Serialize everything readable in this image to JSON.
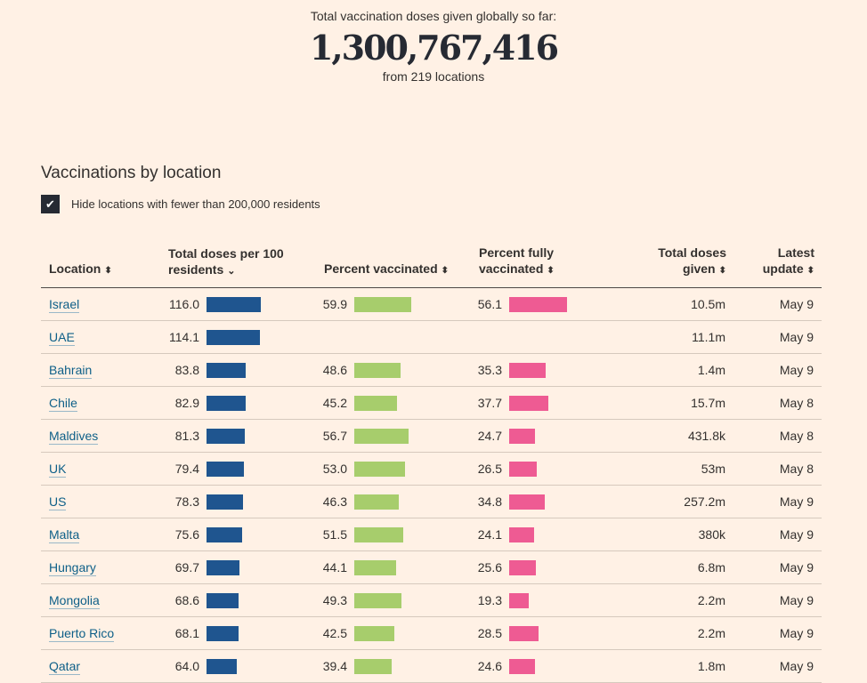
{
  "header": {
    "label": "Total vaccination doses given globally so far:",
    "total": "1,300,767,416",
    "from": "from 219 locations"
  },
  "section_title": "Vaccinations by location",
  "filter": {
    "checked": true,
    "label": "Hide locations with fewer than 200,000 residents"
  },
  "columns": {
    "location": "Location",
    "doses_per_100_line1": "Total doses per 100",
    "doses_per_100_line2": "residents",
    "pct_vaccinated": "Percent vaccinated",
    "pct_fully_line1": "Percent fully",
    "pct_fully_line2": "vaccinated",
    "total_doses_line1": "Total doses",
    "total_doses_line2": "given",
    "latest_line1": "Latest",
    "latest_line2": "update"
  },
  "colors": {
    "doses_bar": "#1f558f",
    "vaccinated_bar": "#a7cd6c",
    "fully_bar": "#ee5b93"
  },
  "rows": [
    {
      "location": "Israel",
      "doses_per_100": "116.0",
      "pct_vaccinated": "59.9",
      "pct_fully": "56.1",
      "total_doses": "10.5m",
      "latest": "May 9"
    },
    {
      "location": "UAE",
      "doses_per_100": "114.1",
      "pct_vaccinated": "",
      "pct_fully": "",
      "total_doses": "11.1m",
      "latest": "May 9"
    },
    {
      "location": "Bahrain",
      "doses_per_100": "83.8",
      "pct_vaccinated": "48.6",
      "pct_fully": "35.3",
      "total_doses": "1.4m",
      "latest": "May 9"
    },
    {
      "location": "Chile",
      "doses_per_100": "82.9",
      "pct_vaccinated": "45.2",
      "pct_fully": "37.7",
      "total_doses": "15.7m",
      "latest": "May 8"
    },
    {
      "location": "Maldives",
      "doses_per_100": "81.3",
      "pct_vaccinated": "56.7",
      "pct_fully": "24.7",
      "total_doses": "431.8k",
      "latest": "May 8"
    },
    {
      "location": "UK",
      "doses_per_100": "79.4",
      "pct_vaccinated": "53.0",
      "pct_fully": "26.5",
      "total_doses": "53m",
      "latest": "May 8"
    },
    {
      "location": "US",
      "doses_per_100": "78.3",
      "pct_vaccinated": "46.3",
      "pct_fully": "34.8",
      "total_doses": "257.2m",
      "latest": "May 9"
    },
    {
      "location": "Malta",
      "doses_per_100": "75.6",
      "pct_vaccinated": "51.5",
      "pct_fully": "24.1",
      "total_doses": "380k",
      "latest": "May 9"
    },
    {
      "location": "Hungary",
      "doses_per_100": "69.7",
      "pct_vaccinated": "44.1",
      "pct_fully": "25.6",
      "total_doses": "6.8m",
      "latest": "May 9"
    },
    {
      "location": "Mongolia",
      "doses_per_100": "68.6",
      "pct_vaccinated": "49.3",
      "pct_fully": "19.3",
      "total_doses": "2.2m",
      "latest": "May 9"
    },
    {
      "location": "Puerto Rico",
      "doses_per_100": "68.1",
      "pct_vaccinated": "42.5",
      "pct_fully": "28.5",
      "total_doses": "2.2m",
      "latest": "May 9"
    },
    {
      "location": "Qatar",
      "doses_per_100": "64.0",
      "pct_vaccinated": "39.4",
      "pct_fully": "24.6",
      "total_doses": "1.8m",
      "latest": "May 9"
    }
  ]
}
